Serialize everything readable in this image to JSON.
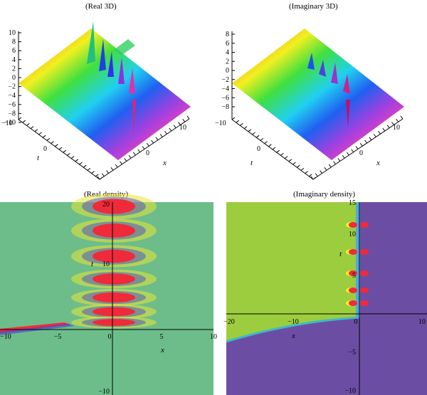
{
  "panels": {
    "real3d": {
      "title": "(Real 3D)",
      "z_ticks": [
        "10",
        "8",
        "6",
        "4",
        "2",
        "0",
        "−2",
        "−4",
        "−6",
        "−8",
        "−10"
      ],
      "t_label": "t",
      "t_tick": "0",
      "t_min": "−10",
      "x_label": "x",
      "x_tick": "0",
      "x_max": "10"
    },
    "imag3d": {
      "title": "(Imaginary 3D)",
      "z_ticks": [
        "8",
        "6",
        "4",
        "2",
        "0",
        "−2",
        "−4",
        "−6",
        "−8"
      ],
      "t_label": "t",
      "t_tick": "0",
      "t_min": "−10",
      "x_label": "x",
      "x_tick": "0",
      "x_max": "10"
    },
    "realdens": {
      "title": "(Real density)",
      "x_ticks": [
        "−10",
        "−5",
        "0",
        "5",
        "10"
      ],
      "y_ticks": [
        "20",
        "10",
        "−10"
      ],
      "x_label": "x",
      "y_label": "t",
      "colors": {
        "background": "#6dbd8a",
        "red": "#ef2a3a",
        "yellow": "#e8e634",
        "blue": "#3d3fd8"
      }
    },
    "imagdens": {
      "title": "(Imaginary density)",
      "x_ticks": [
        "−20",
        "−10",
        "0",
        "10"
      ],
      "y_ticks": [
        "15",
        "10",
        "5",
        "−5",
        "−10"
      ],
      "x_label": "x",
      "y_label": "t",
      "colors": {
        "left": "#9ccd3e",
        "right": "#6b4ea3",
        "lower": "#6b4ea3"
      }
    }
  }
}
